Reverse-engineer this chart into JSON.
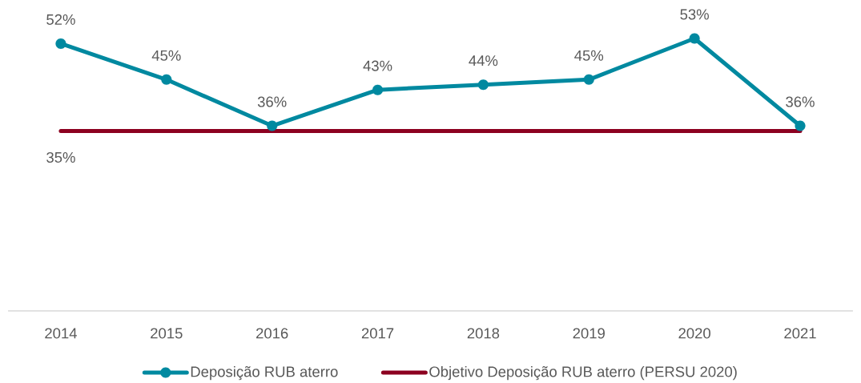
{
  "chart_data": {
    "type": "line",
    "categories": [
      "2014",
      "2015",
      "2016",
      "2017",
      "2018",
      "2019",
      "2020",
      "2021"
    ],
    "series": [
      {
        "name": "Deposição RUB aterro",
        "color": "#0089a0",
        "marker": "circle",
        "values": [
          52,
          45,
          36,
          43,
          44,
          45,
          53,
          36
        ],
        "value_labels": [
          "52%",
          "45%",
          "36%",
          "43%",
          "44%",
          "45%",
          "53%",
          "36%"
        ]
      },
      {
        "name": "Objetivo Deposição RUB aterro (PERSU 2020)",
        "color": "#8c0020",
        "marker": "none",
        "values": [
          35,
          35,
          35,
          35,
          35,
          35,
          35,
          35
        ],
        "value_labels": [
          "35%",
          null,
          null,
          null,
          null,
          null,
          null,
          null
        ]
      }
    ],
    "tick_labels": "x",
    "legend": "bottom"
  }
}
